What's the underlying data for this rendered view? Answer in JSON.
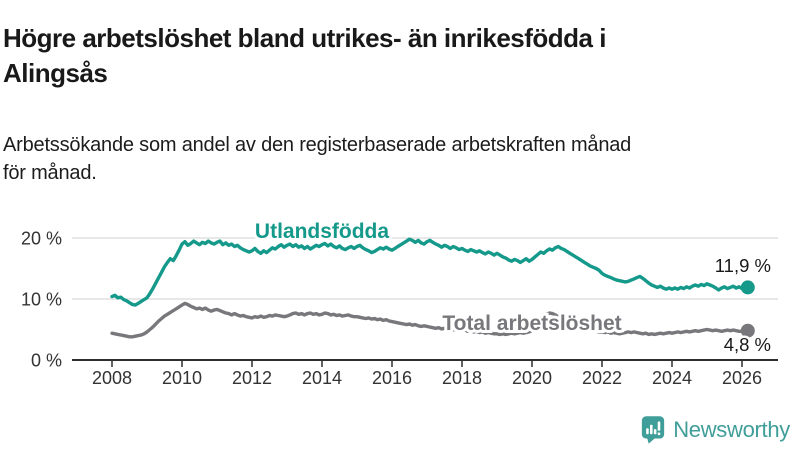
{
  "title": {
    "line1": "Högre arbetslöshet bland utrikes- än inrikesfödda i",
    "line2": "Alingsås"
  },
  "subtitle": {
    "line1": "Arbetssökande som andel av den registerbaserade arbetskraften månad",
    "line2": "för månad."
  },
  "branding": {
    "name": "Newsworthy",
    "icon": "newsworthy-bar-chart-bubble-icon",
    "color": "#3f9e99"
  },
  "chart_data": {
    "type": "line",
    "title": "",
    "xlabel": "",
    "ylabel": "",
    "unit": "%",
    "grid": "horizontal",
    "legend_position": "inline-labels",
    "x_start_year": 2008,
    "x_step_months": 1,
    "ylim": [
      0,
      22
    ],
    "axis_color": "#2e2e2e",
    "grid_color": "#d9d9d9",
    "yticks": [
      {
        "value": 0,
        "label": "0 %"
      },
      {
        "value": 10,
        "label": "10 %"
      },
      {
        "value": 20,
        "label": "20 %"
      }
    ],
    "xticks": [
      {
        "value": 2008,
        "label": "2008"
      },
      {
        "value": 2010,
        "label": "2010"
      },
      {
        "value": 2012,
        "label": "2012"
      },
      {
        "value": 2014,
        "label": "2014"
      },
      {
        "value": 2016,
        "label": "2016"
      },
      {
        "value": 2018,
        "label": "2018"
      },
      {
        "value": 2020,
        "label": "2020"
      },
      {
        "value": 2022,
        "label": "2022"
      },
      {
        "value": 2024,
        "label": "2024"
      },
      {
        "value": 2026,
        "label": "2026"
      }
    ],
    "series": [
      {
        "name": "Utlandsfödda",
        "color": "#14998a",
        "end_label": "11,9 %",
        "end_value": 11.9,
        "values": [
          10.4,
          10.6,
          10.2,
          10.3,
          9.9,
          9.7,
          9.4,
          9.1,
          9.0,
          9.3,
          9.6,
          9.9,
          10.2,
          10.9,
          11.7,
          12.6,
          13.5,
          14.4,
          15.3,
          16.0,
          16.6,
          16.3,
          17.1,
          18.0,
          19.0,
          19.4,
          18.8,
          19.1,
          19.5,
          19.2,
          18.9,
          19.3,
          19.1,
          19.5,
          19.2,
          19.0,
          19.3,
          19.5,
          18.9,
          19.2,
          18.8,
          19.0,
          18.6,
          18.8,
          18.4,
          18.1,
          17.9,
          17.7,
          17.9,
          18.3,
          17.8,
          17.5,
          17.9,
          17.6,
          18.0,
          18.4,
          18.2,
          18.6,
          18.9,
          18.5,
          18.8,
          19.0,
          18.6,
          18.9,
          18.5,
          18.7,
          18.3,
          18.6,
          18.2,
          18.5,
          18.8,
          18.6,
          18.9,
          19.1,
          18.7,
          19.0,
          18.6,
          18.4,
          18.7,
          18.3,
          18.1,
          18.4,
          18.6,
          18.3,
          18.6,
          18.8,
          18.4,
          18.1,
          17.9,
          17.6,
          17.8,
          18.1,
          18.4,
          18.2,
          18.5,
          18.2,
          18.0,
          18.3,
          18.6,
          18.9,
          19.2,
          19.5,
          19.8,
          19.6,
          19.3,
          19.6,
          19.2,
          19.0,
          19.4,
          19.6,
          19.3,
          19.0,
          18.8,
          18.5,
          18.8,
          18.6,
          18.3,
          18.6,
          18.4,
          18.1,
          18.3,
          18.0,
          17.8,
          18.1,
          17.9,
          17.7,
          17.9,
          17.6,
          17.4,
          17.7,
          17.5,
          17.2,
          17.5,
          17.2,
          16.9,
          16.7,
          16.4,
          16.2,
          16.5,
          16.3,
          16.0,
          16.3,
          16.6,
          16.2,
          16.5,
          16.9,
          17.3,
          17.7,
          17.5,
          17.9,
          18.2,
          18.0,
          18.4,
          18.6,
          18.3,
          18.1,
          17.8,
          17.5,
          17.2,
          16.9,
          16.6,
          16.3,
          16.0,
          15.7,
          15.4,
          15.2,
          15.0,
          14.7,
          14.2,
          13.9,
          13.7,
          13.5,
          13.3,
          13.1,
          13.0,
          12.9,
          12.8,
          12.9,
          13.1,
          13.3,
          13.5,
          13.7,
          13.4,
          13.0,
          12.6,
          12.3,
          12.1,
          11.9,
          12.1,
          11.8,
          11.6,
          11.8,
          11.6,
          11.8,
          11.6,
          11.9,
          11.7,
          12.0,
          11.8,
          12.1,
          12.3,
          12.1,
          12.4,
          12.2,
          12.5,
          12.3,
          12.1,
          11.8,
          11.5,
          11.8,
          12.0,
          11.7,
          11.9,
          12.1,
          11.8,
          12.0,
          11.7,
          11.8,
          11.9
        ]
      },
      {
        "name": "Total arbetslöshet",
        "color": "#78787c",
        "end_label": "4,8 %",
        "end_value": 4.8,
        "values": [
          4.4,
          4.3,
          4.2,
          4.1,
          4.0,
          3.9,
          3.8,
          3.8,
          3.9,
          4.0,
          4.1,
          4.3,
          4.6,
          5.0,
          5.4,
          5.9,
          6.4,
          6.8,
          7.2,
          7.5,
          7.8,
          8.1,
          8.4,
          8.7,
          9.0,
          9.3,
          9.1,
          8.8,
          8.6,
          8.4,
          8.5,
          8.3,
          8.5,
          8.2,
          8.0,
          8.2,
          8.3,
          8.1,
          7.9,
          7.7,
          7.6,
          7.4,
          7.6,
          7.4,
          7.2,
          7.3,
          7.1,
          7.0,
          6.9,
          7.1,
          7.0,
          7.2,
          7.0,
          7.1,
          7.3,
          7.2,
          7.4,
          7.3,
          7.2,
          7.1,
          7.2,
          7.4,
          7.6,
          7.7,
          7.5,
          7.6,
          7.4,
          7.6,
          7.7,
          7.5,
          7.6,
          7.4,
          7.5,
          7.7,
          7.6,
          7.4,
          7.5,
          7.3,
          7.4,
          7.2,
          7.3,
          7.4,
          7.2,
          7.1,
          7.1,
          7.0,
          6.9,
          6.8,
          6.9,
          6.7,
          6.8,
          6.6,
          6.7,
          6.5,
          6.6,
          6.4,
          6.3,
          6.2,
          6.1,
          6.0,
          5.9,
          5.8,
          5.9,
          5.7,
          5.8,
          5.6,
          5.5,
          5.6,
          5.5,
          5.4,
          5.3,
          5.2,
          5.3,
          5.1,
          5.2,
          5.0,
          5.1,
          4.9,
          5.0,
          4.9,
          4.8,
          4.9,
          4.7,
          4.8,
          4.6,
          4.7,
          4.5,
          4.6,
          4.4,
          4.5,
          4.4,
          4.3,
          4.3,
          4.2,
          4.3,
          4.2,
          4.3,
          4.4,
          4.3,
          4.4,
          4.5,
          4.4,
          4.5,
          4.6,
          4.8,
          5.2,
          5.8,
          6.5,
          7.1,
          7.5,
          7.7,
          7.6,
          7.4,
          7.1,
          6.8,
          6.5,
          6.2,
          6.0,
          5.8,
          5.6,
          5.4,
          5.2,
          5.1,
          5.0,
          4.9,
          4.8,
          4.7,
          4.6,
          4.6,
          4.5,
          4.6,
          4.4,
          4.5,
          4.4,
          4.3,
          4.4,
          4.5,
          4.6,
          4.5,
          4.6,
          4.5,
          4.4,
          4.3,
          4.4,
          4.2,
          4.3,
          4.2,
          4.3,
          4.4,
          4.3,
          4.4,
          4.5,
          4.4,
          4.5,
          4.6,
          4.5,
          4.6,
          4.7,
          4.6,
          4.7,
          4.8,
          4.7,
          4.8,
          4.9,
          5.0,
          4.9,
          4.8,
          4.9,
          4.8,
          4.7,
          4.8,
          4.9,
          4.8,
          4.9,
          4.8,
          4.7,
          4.7,
          4.8,
          4.8
        ]
      }
    ]
  }
}
